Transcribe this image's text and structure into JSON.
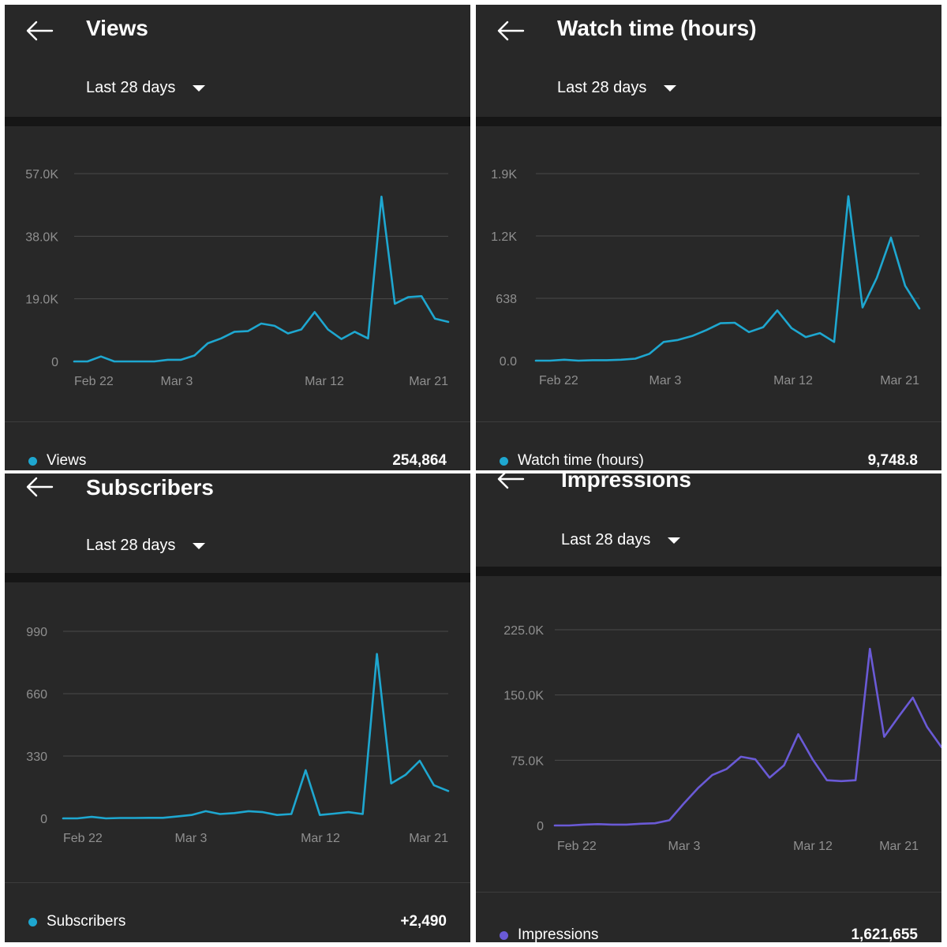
{
  "range_label": "Last 28 days",
  "panels": [
    {
      "title": "Views",
      "legend": "Views",
      "total": "254,864",
      "color": "#1ea7d0",
      "chart_data": {
        "type": "line",
        "x_ticks": [
          "Feb 22",
          "Mar 3",
          "Mar 12",
          "Mar 21"
        ],
        "y_ticks": [
          "0",
          "19.0K",
          "38.0K",
          "57.0K"
        ],
        "ylim": [
          0,
          57000
        ],
        "series": [
          {
            "values": [
              0,
              0,
              1500,
              0,
              0,
              0,
              0,
              500,
              500,
              1800,
              5500,
              7000,
              9000,
              9200,
              11500,
              10800,
              8500,
              9700,
              15000,
              9700,
              6800,
              9000,
              7000,
              50000,
              17500,
              19500,
              19800,
              13000,
              12000
            ]
          }
        ],
        "grid": true
      }
    },
    {
      "title": "Watch time (hours)",
      "legend": "Watch time (hours)",
      "total": "9,748.8",
      "color": "#1ea7d0",
      "chart_data": {
        "type": "line",
        "x_ticks": [
          "Feb 22",
          "Mar 3",
          "Mar 12",
          "Mar 21"
        ],
        "y_ticks": [
          "0.0",
          "638",
          "1.2K",
          "1.9K"
        ],
        "ylim": [
          0,
          1900
        ],
        "series": [
          {
            "values": [
              0,
              0,
              10,
              0,
              5,
              5,
              10,
              20,
              70,
              190,
              210,
              250,
              310,
              380,
              385,
              290,
              340,
              510,
              330,
              240,
              280,
              190,
              1670,
              540,
              840,
              1250,
              760,
              530
            ]
          }
        ],
        "grid": true
      }
    },
    {
      "title": "Subscribers",
      "legend": "Subscribers",
      "total": "+2,490",
      "color": "#1ea7d0",
      "chart_data": {
        "type": "line",
        "x_ticks": [
          "Feb 22",
          "Mar 3",
          "Mar 12",
          "Mar 21"
        ],
        "y_ticks": [
          "0",
          "330",
          "660",
          "990"
        ],
        "ylim": [
          0,
          990
        ],
        "series": [
          {
            "values": [
              0,
              0,
              8,
              0,
              2,
              2,
              3,
              3,
              10,
              18,
              38,
              23,
              28,
              38,
              33,
              18,
              23,
              255,
              18,
              25,
              33,
              23,
              870,
              185,
              230,
              305,
              175,
              145
            ]
          }
        ],
        "grid": true
      }
    },
    {
      "title": "Impressions",
      "legend": "Impressions",
      "total": "1,621,655",
      "color": "#6a5ad6",
      "chart_data": {
        "type": "line",
        "x_ticks": [
          "Feb 22",
          "Mar 3",
          "Mar 12",
          "Mar 21"
        ],
        "y_ticks": [
          "0",
          "75.0K",
          "150.0K",
          "225.0K"
        ],
        "ylim": [
          0,
          225000
        ],
        "series": [
          {
            "values": [
              0,
              0,
              1000,
              1500,
              1000,
              1000,
              2000,
              2500,
              6000,
              25000,
              43000,
              58000,
              65000,
              79000,
              76000,
              55000,
              69000,
              105000,
              76000,
              52000,
              51000,
              52000,
              203000,
              102000,
              125000,
              147000,
              113000,
              90000
            ]
          }
        ],
        "grid": true
      }
    }
  ]
}
